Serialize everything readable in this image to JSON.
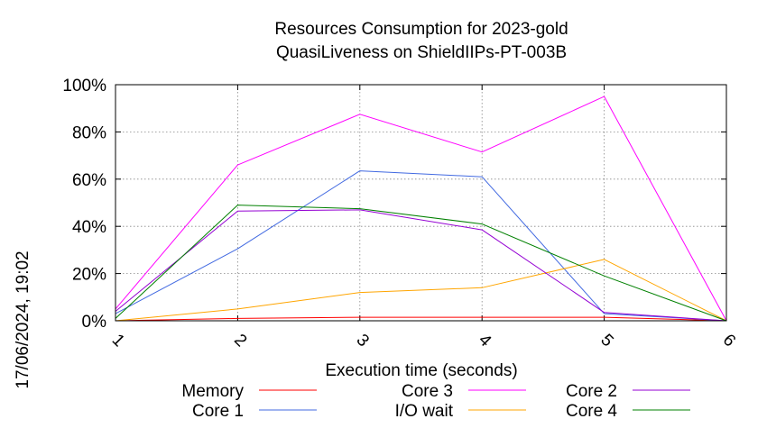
{
  "chart_data": {
    "type": "line",
    "title": "Resources Consumption for 2023-gold",
    "subtitle": "QuasiLiveness on ShieldIIPs-PT-003B",
    "xlabel": "Execution time (seconds)",
    "ylabel": "",
    "side_label": "17/06/2024, 19:02",
    "x": [
      1,
      2,
      3,
      4,
      5,
      6
    ],
    "xlim": [
      1,
      6
    ],
    "ylim": [
      0,
      100
    ],
    "x_ticks": [
      "1",
      "2",
      "3",
      "4",
      "5",
      "6"
    ],
    "y_ticks": [
      {
        "value": 0,
        "label": "0%"
      },
      {
        "value": 20,
        "label": "20%"
      },
      {
        "value": 40,
        "label": "40%"
      },
      {
        "value": 60,
        "label": "60%"
      },
      {
        "value": 80,
        "label": "80%"
      },
      {
        "value": 100,
        "label": "100%"
      }
    ],
    "grid": true,
    "legend_position": "bottom",
    "series": [
      {
        "name": "Memory",
        "color": "#ff0000",
        "values": [
          0,
          1,
          1.5,
          1.5,
          1.5,
          0
        ]
      },
      {
        "name": "Core 1",
        "color": "#4169e1",
        "values": [
          3,
          30.5,
          63.5,
          61,
          3,
          0
        ]
      },
      {
        "name": "Core 3",
        "color": "#ff00ff",
        "values": [
          5,
          66,
          87.5,
          71.5,
          95,
          0
        ]
      },
      {
        "name": "I/O wait",
        "color": "#ffa500",
        "values": [
          0,
          5,
          12,
          14,
          26,
          0
        ]
      },
      {
        "name": "Core 2",
        "color": "#9400d3",
        "values": [
          4,
          46.5,
          47,
          38.5,
          3.5,
          0
        ]
      },
      {
        "name": "Core 4",
        "color": "#008000",
        "values": [
          1,
          49,
          47.5,
          41,
          19,
          0
        ]
      }
    ]
  }
}
